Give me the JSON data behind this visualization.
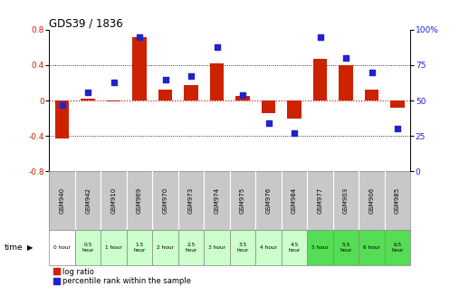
{
  "title": "GDS39 / 1836",
  "samples": [
    "GSM940",
    "GSM942",
    "GSM910",
    "GSM969",
    "GSM970",
    "GSM973",
    "GSM974",
    "GSM975",
    "GSM976",
    "GSM984",
    "GSM977",
    "GSM903",
    "GSM906",
    "GSM985"
  ],
  "time_labels": [
    "0 hour",
    "0.5\nhour",
    "1 hour",
    "1.5\nhour",
    "2 hour",
    "2.5\nhour",
    "3 hour",
    "3.5\nhour",
    "4 hour",
    "4.5\nhour",
    "5 hour",
    "5.5\nhour",
    "6 hour",
    "6.5\nhour"
  ],
  "log_ratio": [
    -0.43,
    0.02,
    -0.01,
    0.72,
    0.12,
    0.17,
    0.42,
    0.05,
    -0.14,
    -0.2,
    0.47,
    0.4,
    0.12,
    -0.08
  ],
  "percentile": [
    47,
    56,
    63,
    95,
    65,
    67,
    88,
    54,
    34,
    27,
    95,
    80,
    70,
    30
  ],
  "ylim_left": [
    -0.8,
    0.8
  ],
  "ylim_right": [
    0,
    100
  ],
  "yticks_left": [
    -0.8,
    -0.4,
    0.0,
    0.4,
    0.8
  ],
  "yticks_right": [
    0,
    25,
    50,
    75,
    100
  ],
  "bar_color": "#cc2200",
  "dot_color": "#2222cc",
  "background_color": "#ffffff",
  "zero_line_color": "#cc0000",
  "sample_row_bg": "#c8c8c8",
  "time_row_colors": [
    "#ffffff",
    "#ccffcc",
    "#ccffcc",
    "#ccffcc",
    "#ccffcc",
    "#ccffcc",
    "#ccffcc",
    "#ccffcc",
    "#ccffcc",
    "#ccffcc",
    "#55dd55",
    "#55dd55",
    "#55dd55",
    "#55dd55"
  ]
}
